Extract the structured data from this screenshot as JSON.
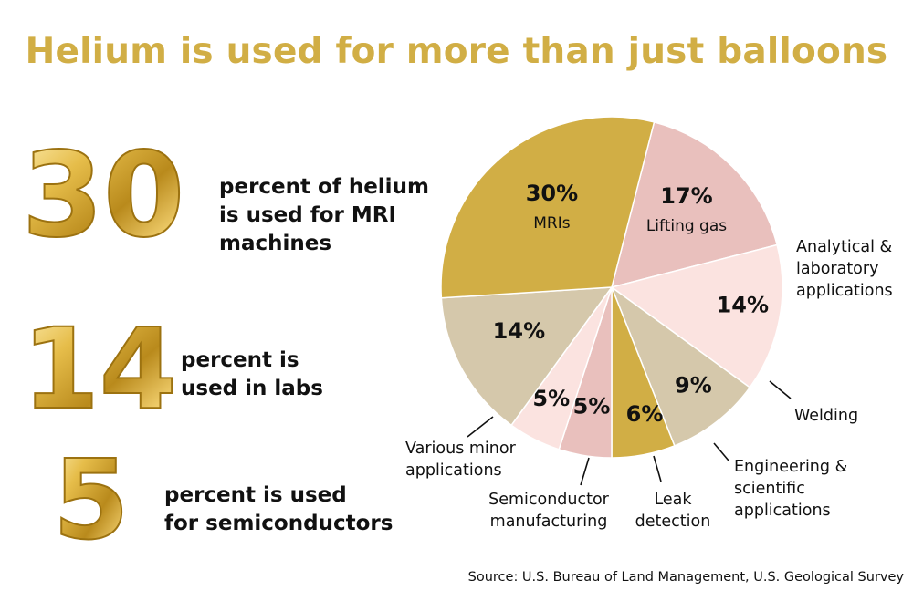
{
  "title": "Helium is used for more than just balloons",
  "stats": [
    {
      "number": "30",
      "lines": [
        "percent of helium",
        "is used for MRI",
        "machines"
      ]
    },
    {
      "number": "14",
      "lines": [
        "percent is",
        "used in labs"
      ]
    },
    {
      "number": "5",
      "lines": [
        "percent is used",
        "for semiconductors"
      ]
    }
  ],
  "source": "Source: U.S. Bureau of Land Management, U.S. Geological Survey",
  "colors": {
    "gold": "#d1ae45",
    "pink": "#e9c0bd",
    "light_pink": "#fbe3e0",
    "tan": "#d5c8ab"
  },
  "chart_data": {
    "type": "pie",
    "title": "",
    "slices": [
      {
        "label": "Lifting gas",
        "value": 17,
        "value_label": "17%",
        "color": "#e9c0bd"
      },
      {
        "label": "Analytical & laboratory applications",
        "value": 14,
        "value_label": "14%",
        "color": "#fbe3e0"
      },
      {
        "label": "Welding",
        "value": 9,
        "value_label": "9%",
        "color": "#d5c8ab"
      },
      {
        "label": "Engineering & scientific applications",
        "value": 6,
        "value_label": "6%",
        "color": "#d1ae45"
      },
      {
        "label": "Leak detection",
        "value": 5,
        "value_label": "5%",
        "color": "#e9c0bd"
      },
      {
        "label": "Semiconductor manufacturing",
        "value": 5,
        "value_label": "5%",
        "color": "#fbe3e0"
      },
      {
        "label": "Various minor applications",
        "value": 14,
        "value_label": "14%",
        "color": "#d5c8ab"
      },
      {
        "label": "MRIs",
        "value": 30,
        "value_label": "30%",
        "color": "#d1ae45"
      }
    ]
  }
}
